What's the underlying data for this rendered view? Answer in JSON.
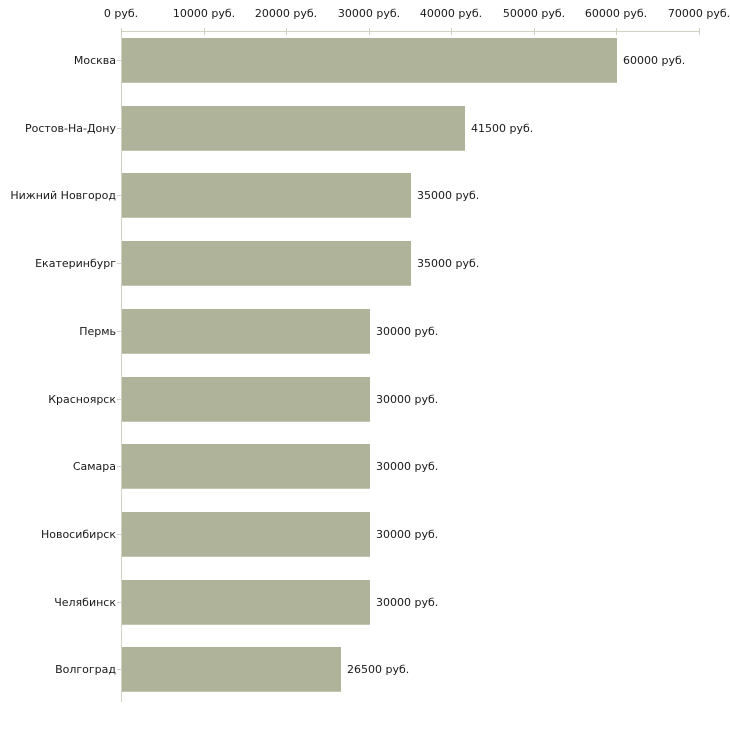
{
  "chart_data": {
    "type": "bar",
    "orientation": "horizontal",
    "title": "",
    "xlabel": "",
    "ylabel": "",
    "xlim": [
      0,
      70000
    ],
    "grid": false,
    "legend": null,
    "x_tick_values": [
      0,
      10000,
      20000,
      30000,
      40000,
      50000,
      60000,
      70000
    ],
    "x_tick_labels": [
      "0 руб.",
      "10000 руб.",
      "20000 руб.",
      "30000 руб.",
      "40000 руб.",
      "50000 руб.",
      "60000 руб.",
      "70000 руб."
    ],
    "categories": [
      "Москва",
      "Ростов-На-Дону",
      "Нижний Новгород",
      "Екатеринбург",
      "Пермь",
      "Красноярск",
      "Самара",
      "Новосибирск",
      "Челябинск",
      "Волгоград"
    ],
    "values": [
      60000,
      41500,
      35000,
      35000,
      30000,
      30000,
      30000,
      30000,
      30000,
      26500
    ],
    "value_labels": [
      "60000 руб.",
      "41500 руб.",
      "35000 руб.",
      "35000 руб.",
      "30000 руб.",
      "30000 руб.",
      "30000 руб.",
      "30000 руб.",
      "30000 руб.",
      "26500 руб."
    ],
    "colors": {
      "bar": "#aeb399",
      "bar_border": "#c3c7b0",
      "axis": "#cfd2c0",
      "tick": "#cfd2c0",
      "text": "#1a1a1a"
    }
  }
}
